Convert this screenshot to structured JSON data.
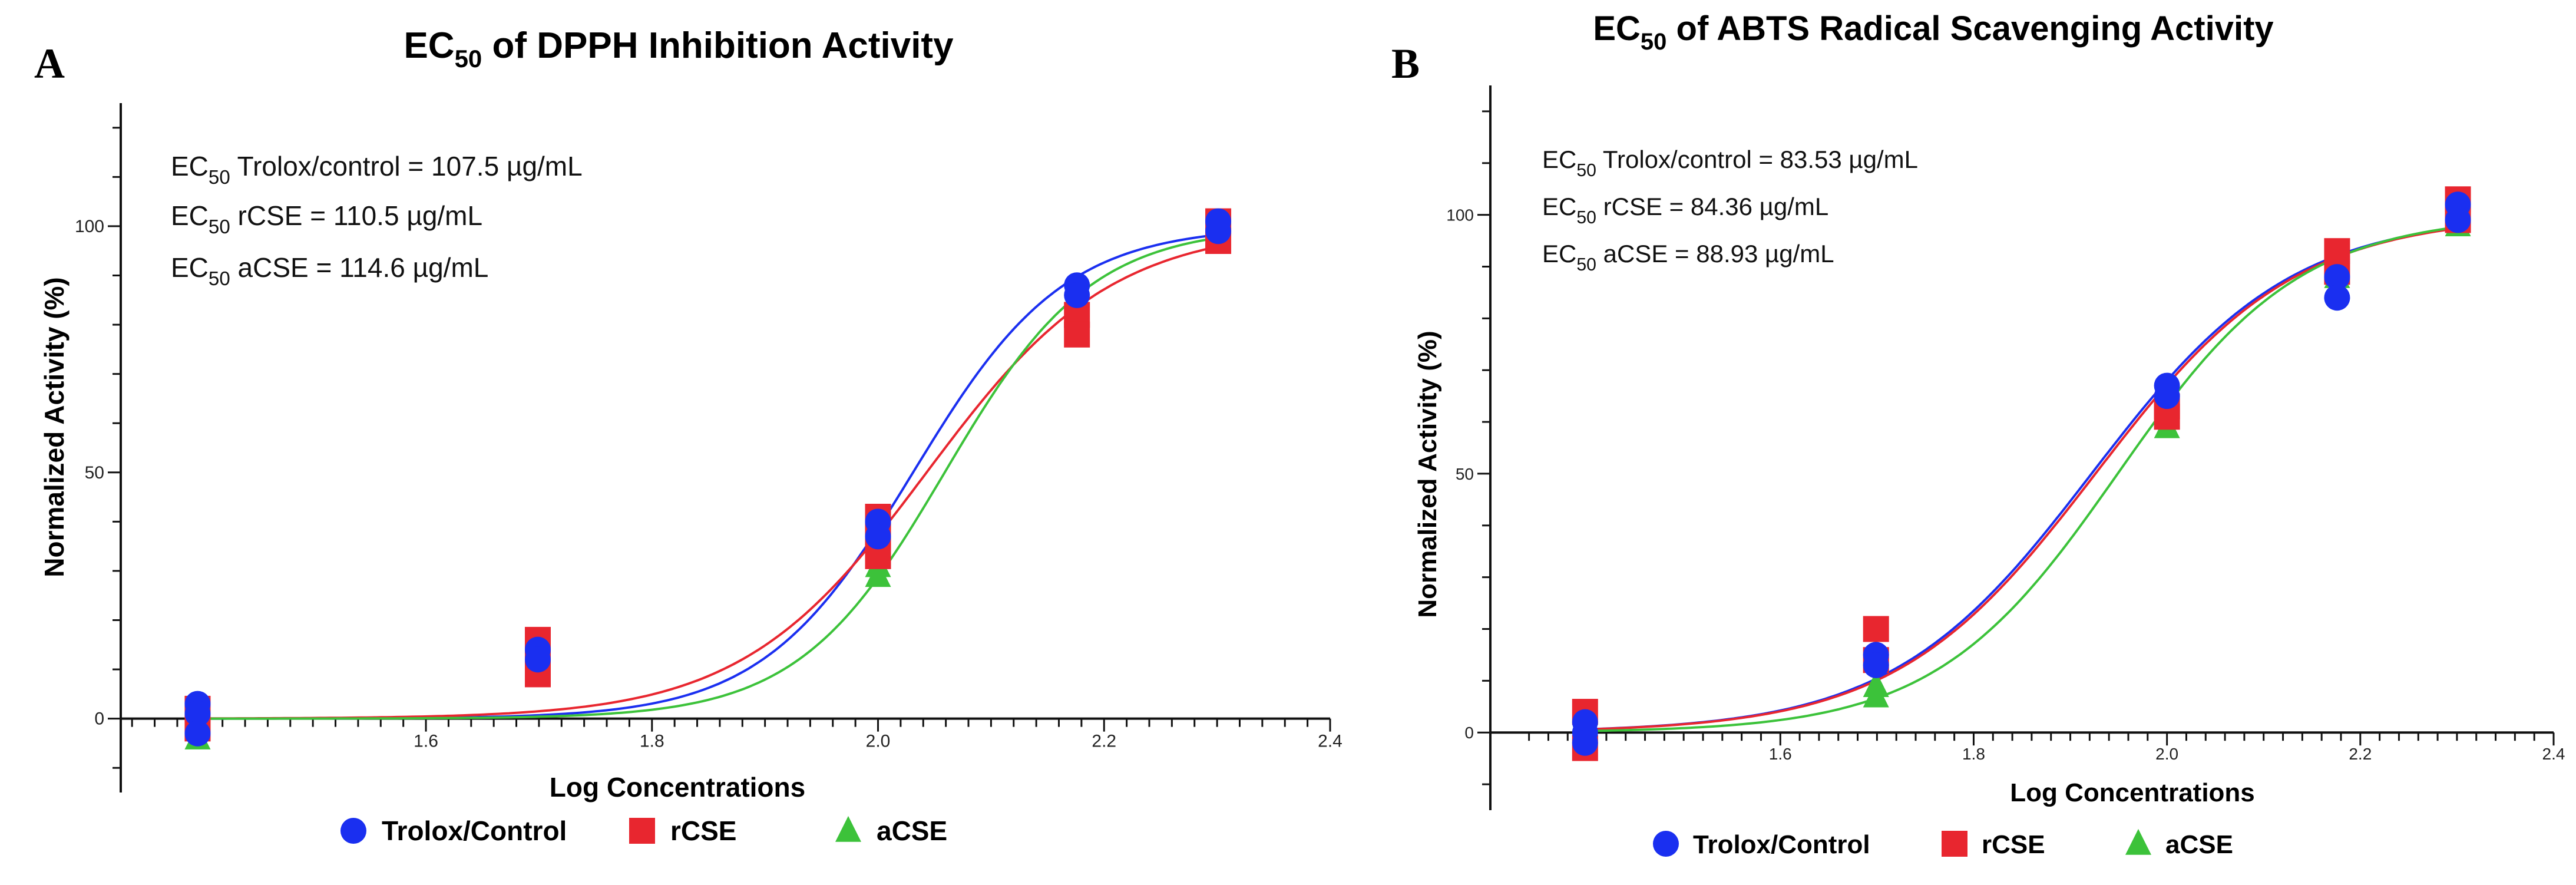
{
  "chart_data": [
    {
      "panel": "A",
      "type": "scatter",
      "title_main": "EC",
      "title_sub": "50",
      "title_rest": " of DPPH Inhibition Activity",
      "xlabel": "Log Concentrations",
      "ylabel": "Normalized Activity (%)",
      "xlim": [
        1.33,
        2.4
      ],
      "ylim": [
        -15,
        125
      ],
      "x_tick_labels": [
        {
          "value": 1.6,
          "label": "1.6"
        },
        {
          "value": 1.8,
          "label": "1.8"
        },
        {
          "value": 2.0,
          "label": "2.0"
        },
        {
          "value": 2.2,
          "label": "2.2"
        },
        {
          "value": 2.4,
          "label": "2.4"
        }
      ],
      "y_tick_labels": [
        {
          "value": 0,
          "label": "0"
        },
        {
          "value": 50,
          "label": "50"
        },
        {
          "value": 100,
          "label": "100"
        }
      ],
      "annotations": [
        {
          "prefix": "EC",
          "sub": "50",
          "text": " Trolox/control = 107.5 µg/mL"
        },
        {
          "prefix": "EC",
          "sub": "50",
          "text": " rCSE = 110.5 µg/mL"
        },
        {
          "prefix": "EC",
          "sub": "50",
          "text": " aCSE = 114.6 µg/mL"
        }
      ],
      "series": [
        {
          "name": "Trolox/Control",
          "color": "#1a2ff0",
          "marker": "circle",
          "x": [
            1.398,
            1.398,
            1.398,
            1.699,
            1.699,
            2.0,
            2.0,
            2.176,
            2.176,
            2.301,
            2.301
          ],
          "y": [
            3,
            1,
            -3,
            14,
            12,
            40,
            37,
            88,
            86,
            101,
            99
          ],
          "fit": {
            "ec50_log": 2.031,
            "hill": 6.5
          }
        },
        {
          "name": "rCSE",
          "color": "#e8262f",
          "marker": "square",
          "x": [
            1.398,
            1.398,
            1.699,
            1.699,
            1.699,
            2.0,
            2.0,
            2.0,
            2.176,
            2.176,
            2.301,
            2.301
          ],
          "y": [
            2,
            -2,
            16,
            12,
            9,
            41,
            37,
            33,
            82,
            78,
            101,
            97
          ],
          "fit": {
            "ec50_log": 2.043,
            "hill": 5.3
          }
        },
        {
          "name": "aCSE",
          "color": "#3cc23a",
          "marker": "triangle",
          "x": [
            1.398,
            1.699,
            2.0,
            2.0,
            2.176,
            2.301
          ],
          "y": [
            -4,
            15,
            29,
            31,
            84,
            100
          ],
          "fit": {
            "ec50_log": 2.059,
            "hill": 6.7
          }
        }
      ],
      "legend": [
        "Trolox/Control",
        "rCSE",
        "aCSE"
      ]
    },
    {
      "panel": "B",
      "type": "scatter",
      "title_main": "EC",
      "title_sub": "50",
      "title_rest": " of ABTS Radical Scavenging Activity",
      "xlabel": "Log Concentrations",
      "ylabel": "Normalized Activity (%)",
      "xlim": [
        1.3,
        2.4
      ],
      "ylim": [
        -15,
        125
      ],
      "x_tick_labels": [
        {
          "value": 1.6,
          "label": "1.6"
        },
        {
          "value": 1.8,
          "label": "1.8"
        },
        {
          "value": 2.0,
          "label": "2.0"
        },
        {
          "value": 2.2,
          "label": "2.2"
        },
        {
          "value": 2.4,
          "label": "2.4"
        }
      ],
      "y_tick_labels": [
        {
          "value": 0,
          "label": "0"
        },
        {
          "value": 50,
          "label": "50"
        },
        {
          "value": 100,
          "label": "100"
        }
      ],
      "annotations": [
        {
          "prefix": "EC",
          "sub": "50",
          "text": " Trolox/control = 83.53 µg/mL"
        },
        {
          "prefix": "EC",
          "sub": "50",
          "text": " rCSE = 84.36 µg/mL"
        },
        {
          "prefix": "EC",
          "sub": "50",
          "text": " aCSE = 88.93 µg/mL"
        }
      ],
      "series": [
        {
          "name": "Trolox/Control",
          "color": "#1a2ff0",
          "marker": "circle",
          "x": [
            1.398,
            1.398,
            1.398,
            1.699,
            1.699,
            2.0,
            2.0,
            2.176,
            2.176,
            2.301,
            2.301
          ],
          "y": [
            2,
            0,
            -2,
            15,
            13,
            67,
            65,
            88,
            84,
            102,
            99
          ],
          "fit": {
            "ec50_log": 1.922,
            "hill": 4.2
          }
        },
        {
          "name": "rCSE",
          "color": "#e8262f",
          "marker": "square",
          "x": [
            1.398,
            1.398,
            1.699,
            1.699,
            2.0,
            2.0,
            2.176,
            2.176,
            2.301,
            2.301
          ],
          "y": [
            4,
            -3,
            20,
            14,
            63,
            61,
            93,
            89,
            103,
            99
          ],
          "fit": {
            "ec50_log": 1.926,
            "hill": 4.2
          }
        },
        {
          "name": "aCSE",
          "color": "#3cc23a",
          "marker": "triangle",
          "x": [
            1.398,
            1.699,
            1.699,
            2.0,
            2.176,
            2.301
          ],
          "y": [
            0,
            9,
            7,
            59,
            88,
            98
          ],
          "fit": {
            "ec50_log": 1.949,
            "hill": 4.6
          }
        }
      ],
      "legend": [
        "Trolox/Control",
        "rCSE",
        "aCSE"
      ]
    }
  ]
}
